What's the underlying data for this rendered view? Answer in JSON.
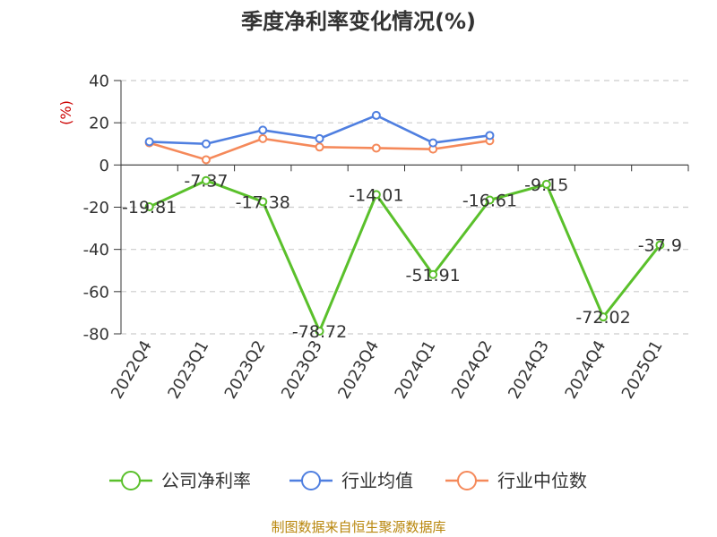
{
  "chart_data": {
    "type": "line",
    "title": "季度净利率变化情况(%)",
    "ylabel": "(%)",
    "categories": [
      "2022Q4",
      "2023Q1",
      "2023Q2",
      "2023Q3",
      "2023Q4",
      "2024Q1",
      "2024Q2",
      "2024Q3",
      "2024Q4",
      "2025Q1"
    ],
    "ylim": [
      -80,
      40
    ],
    "yticks": [
      40,
      20,
      0,
      -20,
      -40,
      -60,
      -80
    ],
    "grid": true,
    "legend_position": "bottom",
    "series": [
      {
        "name": "公司净利率",
        "color": "#5ac02b",
        "values": [
          -19.81,
          -7.37,
          -17.38,
          -78.72,
          -14.01,
          -51.91,
          -16.61,
          -9.15,
          -72.02,
          -37.9
        ],
        "labels": [
          "-19.81",
          "-7.37",
          "-17.38",
          "-78.72",
          "-14.01",
          "-51.91",
          "-16.61",
          "-9.15",
          "-72.02",
          "-37.9"
        ]
      },
      {
        "name": "行业均值",
        "color": "#4f7fe0",
        "values": [
          11,
          10,
          16.5,
          12.5,
          23.5,
          10.5,
          14,
          null,
          null,
          null
        ]
      },
      {
        "name": "行业中位数",
        "color": "#f5895a",
        "values": [
          10.5,
          2.5,
          12.5,
          8.5,
          8,
          7.5,
          11.5,
          null,
          null,
          null
        ]
      }
    ]
  },
  "footer": {
    "source": "制图数据来自恒生聚源数据库",
    "color": "#b8860b"
  }
}
